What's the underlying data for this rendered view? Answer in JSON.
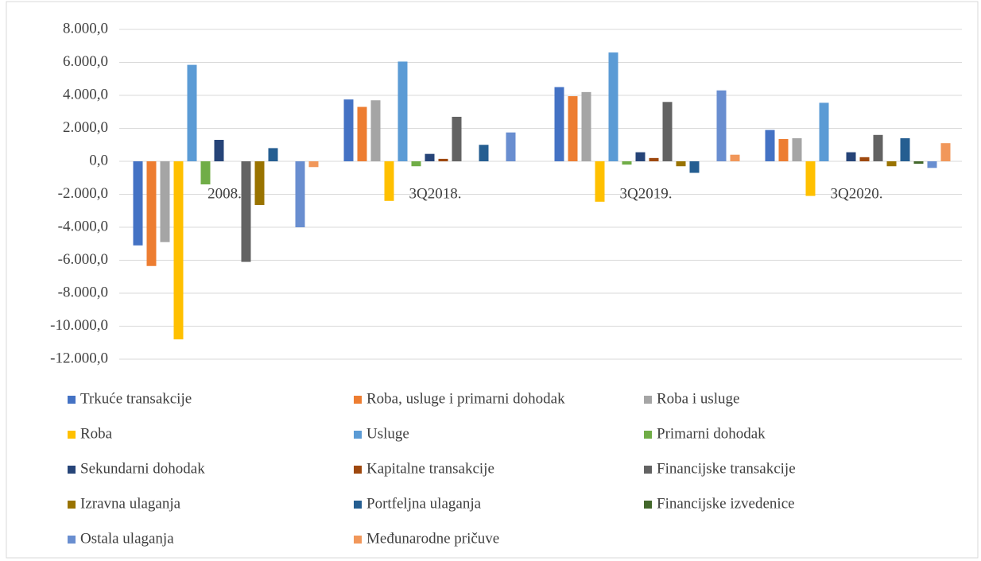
{
  "chart_data": {
    "type": "bar",
    "categories": [
      "2008.",
      "3Q2018.",
      "3Q2019.",
      "3Q2020."
    ],
    "series": [
      {
        "name": "Trkuće transakcije",
        "color": "#4472C4",
        "values": [
          -5100,
          3750,
          4500,
          1900
        ]
      },
      {
        "name": "Roba, usluge i primarni dohodak",
        "color": "#ED7D31",
        "values": [
          -6350,
          3300,
          3950,
          1350
        ]
      },
      {
        "name": "Roba i usluge",
        "color": "#A5A5A5",
        "values": [
          -4900,
          3700,
          4200,
          1400
        ]
      },
      {
        "name": "Roba",
        "color": "#FFC000",
        "values": [
          -10800,
          -2400,
          -2450,
          -2100
        ]
      },
      {
        "name": "Usluge",
        "color": "#5B9BD5",
        "values": [
          5850,
          6050,
          6600,
          3550
        ]
      },
      {
        "name": "Primarni dohodak",
        "color": "#70AD47",
        "values": [
          -1400,
          -300,
          -200,
          0
        ]
      },
      {
        "name": "Sekundarni dohodak",
        "color": "#264478",
        "values": [
          1300,
          450,
          550,
          550
        ]
      },
      {
        "name": "Kapitalne transakcije",
        "color": "#9E480E",
        "values": [
          0,
          150,
          200,
          250
        ]
      },
      {
        "name": "Financijske transakcije",
        "color": "#636363",
        "values": [
          -6100,
          2700,
          3600,
          1600
        ]
      },
      {
        "name": "Izravna ulaganja",
        "color": "#997300",
        "values": [
          -2650,
          0,
          -300,
          -300
        ]
      },
      {
        "name": "Portfeljna ulaganja",
        "color": "#255E91",
        "values": [
          800,
          1000,
          -700,
          1400
        ]
      },
      {
        "name": "Financijske izvedenice",
        "color": "#43682B",
        "values": [
          0,
          0,
          0,
          -150
        ]
      },
      {
        "name": "Ostala ulaganja",
        "color": "#698ED0",
        "values": [
          -4000,
          1750,
          4300,
          -400
        ]
      },
      {
        "name": "Međunarodne pričuve",
        "color": "#F1975A",
        "values": [
          -350,
          0,
          400,
          1100
        ]
      }
    ],
    "ylim": [
      -12000,
      8000
    ],
    "yticks": [
      {
        "value": -12000,
        "label": "-12.000,0"
      },
      {
        "value": -10000,
        "label": "-10.000,0"
      },
      {
        "value": -8000,
        "label": "-8.000,0"
      },
      {
        "value": -6000,
        "label": "-6.000,0"
      },
      {
        "value": -4000,
        "label": "-4.000,0"
      },
      {
        "value": -2000,
        "label": "-2.000,0"
      },
      {
        "value": 0,
        "label": "0,0"
      },
      {
        "value": 2000,
        "label": "2.000,0"
      },
      {
        "value": 4000,
        "label": "4.000,0"
      },
      {
        "value": 6000,
        "label": "6.000,0"
      },
      {
        "value": 8000,
        "label": "8.000,0"
      }
    ],
    "grid": true,
    "legend": "bottom"
  }
}
